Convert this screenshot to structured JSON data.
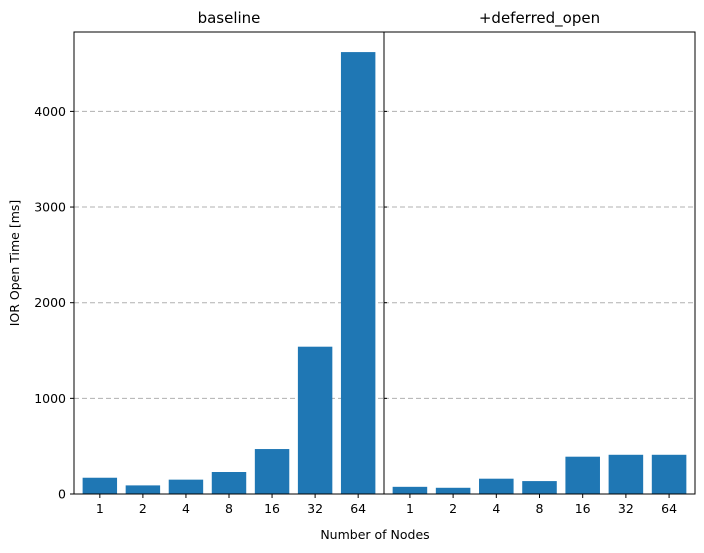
{
  "chart_data": {
    "type": "bar",
    "xlabel": "Number of Nodes",
    "ylabel": "IOR Open Time [ms]",
    "ylim": [
      0,
      4830
    ],
    "yticks": [
      0,
      1000,
      2000,
      3000,
      4000
    ],
    "grid": "y-dashed",
    "bar_color": "#1f77b4",
    "categories": [
      "1",
      "2",
      "4",
      "8",
      "16",
      "32",
      "64"
    ],
    "panels": [
      {
        "title": "baseline",
        "values": [
          170,
          90,
          150,
          230,
          470,
          1540,
          4620
        ]
      },
      {
        "title": "+deferred_open",
        "values": [
          75,
          65,
          160,
          135,
          390,
          410,
          410
        ]
      }
    ]
  }
}
